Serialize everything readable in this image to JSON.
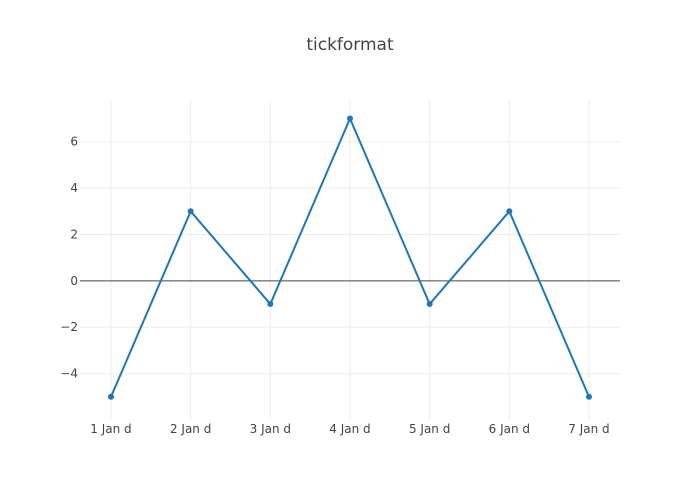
{
  "chart_data": {
    "type": "line",
    "title": "tickformat",
    "xlabel": "",
    "ylabel": "",
    "x": [
      "2016-01-01",
      "2016-01-02",
      "2016-01-03",
      "2016-01-04",
      "2016-01-05",
      "2016-01-06",
      "2016-01-07"
    ],
    "x_tick_labels": [
      "1 Jan d",
      "2 Jan d",
      "3 Jan d",
      "4 Jan d",
      "5 Jan d",
      "6 Jan d",
      "7 Jan d"
    ],
    "series": [
      {
        "values": [
          -5,
          3,
          -1,
          7,
          -1,
          3,
          -5
        ],
        "color": "#1f77b4"
      }
    ],
    "y_ticks": [
      -4,
      -2,
      0,
      2,
      4,
      6
    ],
    "y_tick_labels": [
      "−4",
      "−2",
      "0",
      "2",
      "4",
      "6"
    ],
    "ylim": [
      -6,
      7.8
    ],
    "grid": true,
    "zero_line": true,
    "markers": true
  }
}
